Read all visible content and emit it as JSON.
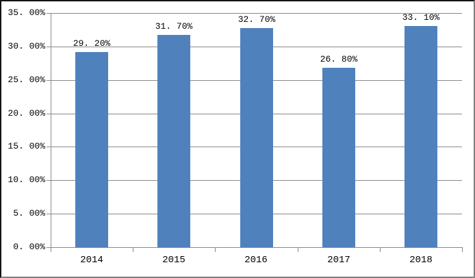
{
  "window": {
    "background_color": "#ffffff",
    "border_dark_color": "#141414",
    "border_light_color": "#7f7f7f"
  },
  "chart_data": {
    "type": "bar",
    "title": "",
    "xlabel": "",
    "ylabel": "",
    "categories": [
      "2014",
      "2015",
      "2016",
      "2017",
      "2018"
    ],
    "values": [
      29.2,
      31.7,
      32.7,
      26.8,
      33.1
    ],
    "data_labels": [
      "29. 20%",
      "31. 70%",
      "32. 70%",
      "26. 80%",
      "33. 10%"
    ],
    "ylim": [
      0,
      35
    ],
    "y_tick_step": 5,
    "y_tick_labels": [
      "0. 00%",
      "5. 00%",
      "10. 00%",
      "15. 00%",
      "20. 00%",
      "25. 00%",
      "30. 00%",
      "35. 00%"
    ],
    "grid": true,
    "legend": false,
    "legend_position": "none",
    "bar_color": "#4F81BD",
    "grid_color": "#898989",
    "axis_color": "#898989",
    "text_color": "#000000"
  }
}
